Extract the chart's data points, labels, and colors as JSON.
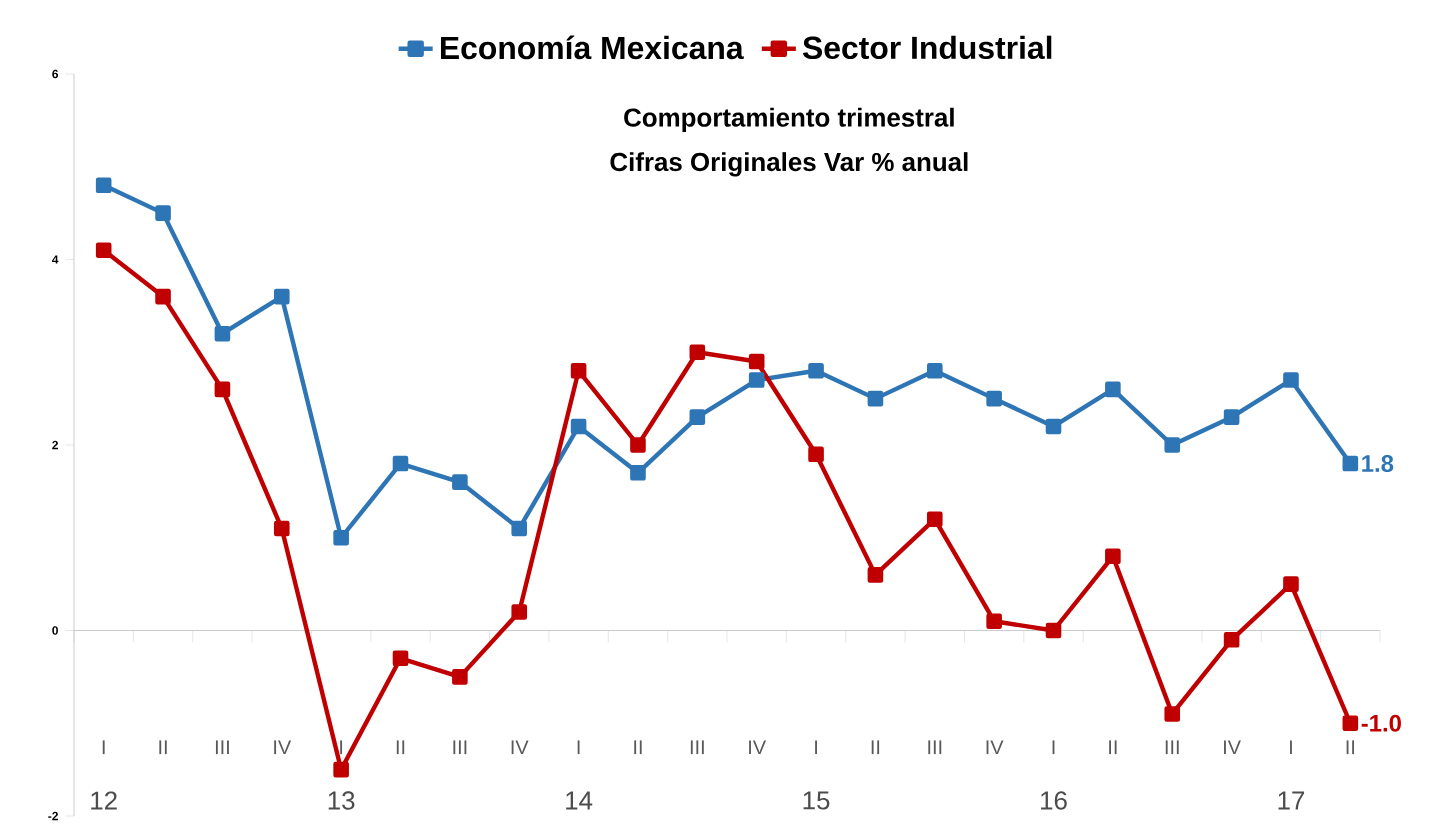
{
  "chart_data": {
    "type": "line",
    "title": "Comportamiento trimestral",
    "subtitle": "Cifras Originales Var % anual",
    "categories": [
      "I",
      "II",
      "III",
      "IV",
      "I",
      "II",
      "III",
      "IV",
      "I",
      "II",
      "III",
      "IV",
      "I",
      "II",
      "III",
      "IV",
      "I",
      "II",
      "III",
      "IV",
      "I",
      "II"
    ],
    "series": [
      {
        "name": "Economía Mexicana",
        "color": "#2e75b6",
        "values": [
          4.8,
          4.5,
          3.2,
          3.6,
          1.0,
          1.8,
          1.6,
          1.1,
          2.2,
          1.7,
          2.3,
          2.7,
          2.8,
          2.5,
          2.8,
          2.5,
          2.2,
          2.6,
          2.0,
          2.3,
          2.7,
          1.8
        ],
        "value_labels": [
          null,
          null,
          null,
          null,
          null,
          null,
          null,
          null,
          null,
          null,
          null,
          null,
          null,
          null,
          null,
          null,
          null,
          null,
          null,
          null,
          null,
          "1.8"
        ]
      },
      {
        "name": "Sector Industrial",
        "color": "#c00000",
        "values": [
          4.1,
          3.6,
          2.6,
          1.1,
          -1.5,
          -0.3,
          -0.5,
          0.2,
          2.8,
          2.0,
          3.0,
          2.9,
          1.9,
          0.6,
          1.2,
          0.1,
          0.0,
          0.8,
          -0.9,
          -0.1,
          0.5,
          -1.0
        ],
        "value_labels": [
          null,
          null,
          null,
          null,
          null,
          null,
          null,
          null,
          null,
          null,
          null,
          null,
          null,
          null,
          null,
          null,
          null,
          null,
          null,
          null,
          null,
          "-1.0"
        ]
      }
    ],
    "annotations": [
      "12",
      "13",
      "14",
      "15",
      "16",
      "17"
    ],
    "ylim": [
      -2,
      6
    ],
    "yticks": [
      -2,
      0,
      2,
      4,
      6
    ],
    "legend": "top",
    "marker": "square",
    "line_style": "solid"
  }
}
